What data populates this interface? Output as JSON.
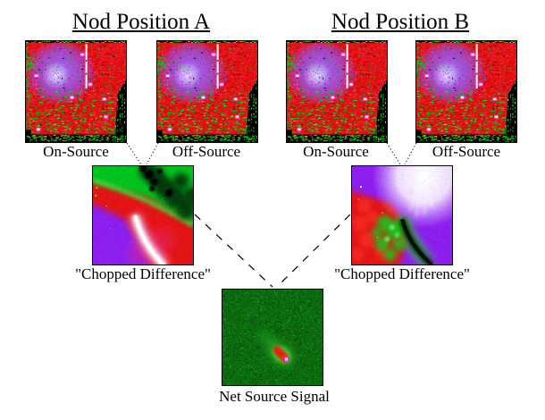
{
  "nod_a": {
    "title": "Nod Position A",
    "on": "On-Source",
    "off": "Off-Source"
  },
  "nod_b": {
    "title": "Nod Position B",
    "on": "On-Source",
    "off": "Off-Source"
  },
  "chop_a_label": "\"Chopped Difference\"",
  "chop_b_label": "\"Chopped Difference\"",
  "net_label": "Net Source Signal",
  "palette": {
    "detector_red": "#e01010",
    "detector_red_hi": "#f52222",
    "detector_red_lo": "#bf0606",
    "green": "#00cc1a",
    "green_hi": "#35f04a",
    "green_dark": "#063f06",
    "purple_glow": "#9a64ff",
    "purple_core": "#e4d2ff",
    "magenta": "#ff3ad6",
    "white": "#ffffff",
    "black": "#000000",
    "chop_green": "#00c31e",
    "chop_red": "#e41414",
    "chop_purple": "#8c1ef0",
    "chop_pink": "#e6288a",
    "net_bg": "#0d6a11",
    "net_halo": "#2eaa28",
    "net_red": "#e02410"
  },
  "images": [
    {
      "id": "a-on",
      "type": "detector",
      "seed": 42,
      "depicts": "raw infrared array frame, on-source, nod A"
    },
    {
      "id": "a-off",
      "type": "detector",
      "seed": 42,
      "depicts": "raw infrared array frame, off-source, nod A"
    },
    {
      "id": "b-on",
      "type": "detector",
      "seed": 42,
      "depicts": "raw infrared array frame, on-source, nod B"
    },
    {
      "id": "b-off",
      "type": "detector",
      "seed": 42,
      "depicts": "raw infrared array frame, off-source, nod B"
    },
    {
      "id": "chop-a",
      "type": "chopA",
      "seed": 7,
      "depicts": "chopped difference frame for nod A: green/red/purple residual sky gradient with bright white streak"
    },
    {
      "id": "chop-b",
      "type": "chopB",
      "seed": 9,
      "depicts": "chopped difference frame for nod B: inverted white/purple/red/green gradient with dark streak"
    },
    {
      "id": "net",
      "type": "net",
      "seed": 5,
      "depicts": "net source signal: green noise background with compact red source and white core"
    }
  ]
}
